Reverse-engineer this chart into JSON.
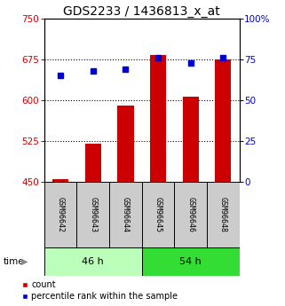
{
  "title": "GDS2233 / 1436813_x_at",
  "samples": [
    "GSM96642",
    "GSM96643",
    "GSM96644",
    "GSM96645",
    "GSM96646",
    "GSM96648"
  ],
  "counts": [
    455,
    520,
    590,
    683,
    607,
    675
  ],
  "percentiles": [
    65,
    68,
    69,
    76,
    73,
    76
  ],
  "groups": [
    {
      "label": "46 h",
      "n": 3,
      "color": "#bbffbb"
    },
    {
      "label": "54 h",
      "n": 3,
      "color": "#33dd33"
    }
  ],
  "ylim_left": [
    450,
    750
  ],
  "ylim_right": [
    0,
    100
  ],
  "yticks_left": [
    450,
    525,
    600,
    675,
    750
  ],
  "yticks_right": [
    0,
    25,
    50,
    75,
    100
  ],
  "bar_color": "#cc0000",
  "dot_color": "#0000cc",
  "bar_width": 0.5,
  "title_fontsize": 10,
  "tick_fontsize": 7.5,
  "legend_fontsize": 7,
  "sample_fontsize": 6,
  "group_fontsize": 8
}
